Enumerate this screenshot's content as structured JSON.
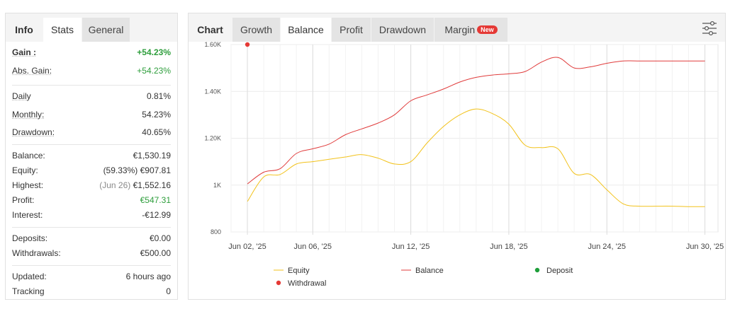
{
  "left": {
    "tabs": [
      {
        "label": "Info",
        "active": false
      },
      {
        "label": "Stats",
        "active": true
      },
      {
        "label": "General",
        "active": false
      }
    ],
    "gain": {
      "label": "Gain :",
      "value": "+54.23%"
    },
    "abs_gain": {
      "label": "Abs. Gain:",
      "value": "+54.23%"
    },
    "daily": {
      "label": "Daily",
      "value": "0.81%"
    },
    "monthly": {
      "label": "Monthly:",
      "value": "54.23%"
    },
    "drawdown": {
      "label": "Drawdown:",
      "value": "40.65%"
    },
    "balance": {
      "label": "Balance:",
      "value": "€1,530.19"
    },
    "equity": {
      "label": "Equity:",
      "value_note": "(59.33%)",
      "value": "€907.81"
    },
    "highest": {
      "label": "Highest:",
      "value_note": "(Jun 26)",
      "value": "€1,552.16"
    },
    "profit": {
      "label": "Profit:",
      "value": "€547.31"
    },
    "interest": {
      "label": "Interest:",
      "value": "-€12.99"
    },
    "deposits": {
      "label": "Deposits:",
      "value": "€0.00"
    },
    "withdrawals": {
      "label": "Withdrawals:",
      "value": "€500.00"
    },
    "updated": {
      "label": "Updated:",
      "value": "6 hours ago"
    },
    "tracking": {
      "label": "Tracking",
      "value": "0"
    }
  },
  "right": {
    "tabs": [
      {
        "label": "Chart",
        "active": false
      },
      {
        "label": "Growth",
        "active": false
      },
      {
        "label": "Balance",
        "active": true
      },
      {
        "label": "Profit",
        "active": false
      },
      {
        "label": "Drawdown",
        "active": false
      },
      {
        "label": "Margin",
        "active": false,
        "badge": "New"
      }
    ],
    "settings_icon": "sliders-icon"
  },
  "colors": {
    "equity": "#f2c21b",
    "balance": "#e03b3b",
    "deposit": "#1e9e3a",
    "withdrawal": "#e53935",
    "positive": "#2e9e3c",
    "badge": "#e53935"
  },
  "chart_data": {
    "type": "line",
    "y_ticks": [
      "800",
      "1K",
      "1.20K",
      "1.40K",
      "1.60K"
    ],
    "ylim": [
      800,
      1600
    ],
    "x_ticks": [
      {
        "x": 2,
        "label": "Jun 02, '25"
      },
      {
        "x": 6,
        "label": "Jun 06, '25"
      },
      {
        "x": 12,
        "label": "Jun 12, '25"
      },
      {
        "x": 18,
        "label": "Jun 18, '25"
      },
      {
        "x": 24,
        "label": "Jun 24, '25"
      },
      {
        "x": 30,
        "label": "Jun 30, '25"
      }
    ],
    "xlim": [
      1,
      30.8
    ],
    "grid": true,
    "legend_position": "bottom",
    "series": [
      {
        "name": "Equity",
        "x": [
          2,
          3,
          4,
          5,
          6,
          7,
          8,
          9,
          10,
          11,
          12,
          13,
          14,
          15,
          16,
          17,
          18,
          19,
          20,
          21,
          22,
          23,
          24,
          25,
          26,
          27,
          28,
          29,
          30
        ],
        "values": [
          930,
          1035,
          1045,
          1090,
          1100,
          1110,
          1120,
          1130,
          1115,
          1090,
          1100,
          1180,
          1250,
          1300,
          1325,
          1305,
          1260,
          1170,
          1160,
          1155,
          1050,
          1045,
          980,
          920,
          910,
          910,
          910,
          908,
          908
        ]
      },
      {
        "name": "Balance",
        "x": [
          2,
          3,
          4,
          5,
          6,
          7,
          8,
          9,
          10,
          11,
          12,
          13,
          14,
          15,
          16,
          17,
          18,
          19,
          20,
          21,
          22,
          23,
          24,
          25,
          26,
          27,
          28,
          29,
          30
        ],
        "values": [
          1005,
          1055,
          1070,
          1135,
          1155,
          1175,
          1215,
          1240,
          1265,
          1300,
          1360,
          1385,
          1410,
          1440,
          1460,
          1470,
          1475,
          1485,
          1525,
          1545,
          1500,
          1505,
          1520,
          1530,
          1530,
          1530,
          1530,
          1530,
          1530
        ]
      }
    ],
    "events": [
      {
        "type": "Withdrawal",
        "x": 2,
        "y": 1600
      }
    ],
    "legend": [
      {
        "label": "Equity",
        "kind": "line",
        "series": "Equity"
      },
      {
        "label": "Balance",
        "kind": "line",
        "series": "Balance"
      },
      {
        "label": "Deposit",
        "kind": "dot",
        "series": "Deposit"
      },
      {
        "label": "Withdrawal",
        "kind": "dot",
        "series": "Withdrawal"
      }
    ]
  }
}
